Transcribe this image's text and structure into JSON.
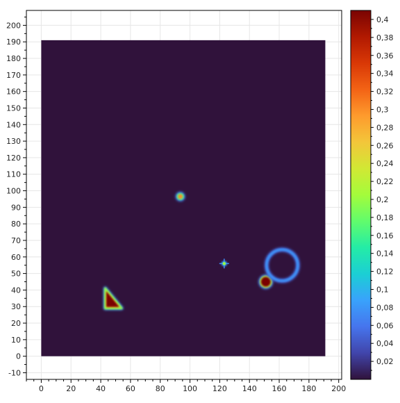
{
  "chart_data": {
    "type": "heatmap",
    "title": "",
    "xlabel": "",
    "ylabel": "",
    "xlim": [
      -10,
      202
    ],
    "ylim": [
      -14,
      209
    ],
    "x_ticks": [
      0,
      20,
      40,
      60,
      80,
      100,
      120,
      140,
      160,
      180,
      200
    ],
    "x_tick_labels": [
      "0",
      "20",
      "40",
      "60",
      "80",
      "100",
      "120",
      "140",
      "160",
      "180",
      "200"
    ],
    "y_ticks": [
      -10,
      0,
      10,
      20,
      30,
      40,
      50,
      60,
      70,
      80,
      90,
      100,
      110,
      120,
      130,
      140,
      150,
      160,
      170,
      180,
      190,
      200
    ],
    "y_tick_labels": [
      "-10",
      "0",
      "10",
      "20",
      "30",
      "40",
      "50",
      "60",
      "70",
      "80",
      "90",
      "100",
      "110",
      "120",
      "130",
      "140",
      "150",
      "160",
      "170",
      "180",
      "190",
      "200"
    ],
    "grid": true,
    "field_extent": {
      "x": [
        0,
        191
      ],
      "y": [
        0,
        191
      ]
    },
    "colorbar": {
      "min": 0,
      "max": 0.41,
      "ticks": [
        0.02,
        0.04,
        0.06,
        0.08,
        0.1,
        0.12,
        0.14,
        0.16,
        0.18,
        0.2,
        0.22,
        0.24,
        0.26,
        0.28,
        0.3,
        0.32,
        0.34,
        0.36,
        0.38,
        0.4
      ],
      "tick_labels": [
        "0,02",
        "0,04",
        "0,06",
        "0,08",
        "0,1",
        "0,12",
        "0,14",
        "0,16",
        "0,18",
        "0,2",
        "0,22",
        "0,24",
        "0,26",
        "0,28",
        "0,3",
        "0,32",
        "0,34",
        "0,36",
        "0,38",
        "0,4"
      ],
      "colormap": [
        "#30123b",
        "#4145ab",
        "#4675ed",
        "#39a2fc",
        "#1bcfd4",
        "#24eca6",
        "#61fc6c",
        "#a4fc3b",
        "#d1e834",
        "#f3c63a",
        "#fe9b2d",
        "#f36315",
        "#d93806",
        "#b11901",
        "#7a0402"
      ]
    },
    "features": [
      {
        "name": "triangle",
        "shape": "polygon",
        "points": [
          [
            43,
            41
          ],
          [
            43,
            29
          ],
          [
            54,
            29
          ]
        ],
        "value": 0.41
      },
      {
        "name": "blob-left-of-ring",
        "shape": "blob",
        "center": [
          151,
          45
        ],
        "radius": 3.5,
        "value": 0.41
      },
      {
        "name": "ring",
        "shape": "ring",
        "center": [
          162,
          55
        ],
        "radius": 10.5,
        "value": 0.08
      },
      {
        "name": "spot",
        "shape": "blob",
        "center": [
          93.5,
          96.5
        ],
        "radius": 1.8,
        "value": 0.3
      },
      {
        "name": "sparkle",
        "shape": "point",
        "center": [
          123,
          56
        ],
        "value": 0.2
      }
    ]
  }
}
